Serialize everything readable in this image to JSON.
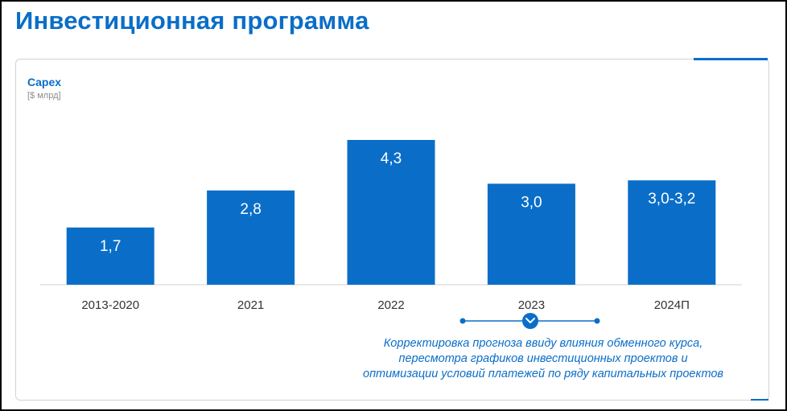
{
  "page": {
    "title": "Инвестиционная программа"
  },
  "chart_data": {
    "type": "bar",
    "title": "Capex",
    "ylabel": "[$ млрд]",
    "xlabel": "",
    "categories": [
      "2013-2020",
      "2021",
      "2022",
      "2023",
      "2024П"
    ],
    "values": [
      1.7,
      2.8,
      4.3,
      3.0,
      3.1
    ],
    "value_labels": [
      "1,7",
      "2,8",
      "4,3",
      "3,0",
      "3,0-3,2"
    ],
    "range_2024": [
      3.0,
      3.2
    ],
    "ylim": [
      0,
      4.3
    ],
    "grid": false,
    "legend": "none",
    "color": "#0a6ec8"
  },
  "annotation": {
    "lines": [
      "Корректировка прогноза ввиду влияния обменного курса,",
      "пересмотра графиков инвестиционных проектов и",
      "оптимизации условий платежей по ряду капитальных проектов"
    ],
    "marker_icon": "chevron-down-icon"
  },
  "colors": {
    "accent": "#0a6ec8",
    "text": "#333333",
    "muted": "#8c8c8c"
  }
}
